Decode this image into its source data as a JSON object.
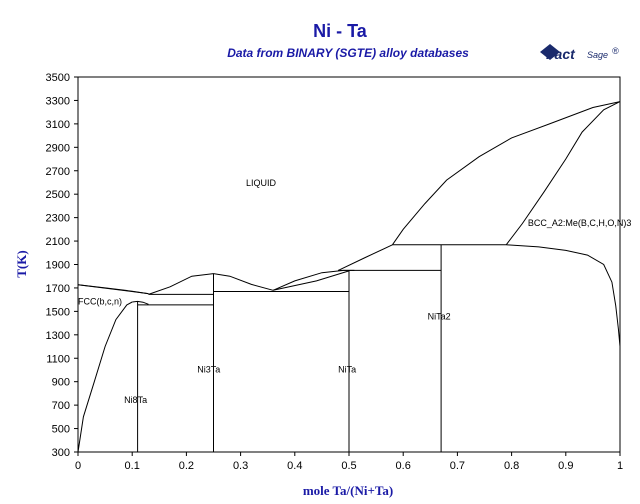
{
  "chart_data": {
    "type": "line",
    "title": "Ni - Ta",
    "subtitle": "Data from BINARY (SGTE) alloy databases",
    "xlabel": "mole Ta/(Ni+Ta)",
    "ylabel": "T(K)",
    "xlim": [
      0,
      1
    ],
    "ylim": [
      300,
      3500
    ],
    "x_ticks": [
      0,
      0.1,
      0.2,
      0.3,
      0.4,
      0.5,
      0.6,
      0.7,
      0.8,
      0.9,
      1
    ],
    "x_tick_labels": [
      "0",
      "0.1",
      "0.2",
      "0.3",
      "0.4",
      "0.5",
      "0.6",
      "0.7",
      "0.8",
      "0.9",
      "1"
    ],
    "y_ticks": [
      300,
      500,
      700,
      900,
      1100,
      1300,
      1500,
      1700,
      1900,
      2100,
      2300,
      2500,
      2700,
      2900,
      3100,
      3300,
      3500
    ],
    "y_tick_labels": [
      "300",
      "500",
      "700",
      "900",
      "1100",
      "1300",
      "1500",
      "1700",
      "1900",
      "2100",
      "2300",
      "2500",
      "2700",
      "2900",
      "3100",
      "3300",
      "3500"
    ],
    "grid": false,
    "legend": "none",
    "region_labels": [
      {
        "text": "LIQUID",
        "x": 0.31,
        "y": 2570
      },
      {
        "text": "FCC(b,c,n)",
        "x": 0.0,
        "y": 1560
      },
      {
        "text": "BCC_A2:Me(B,C,H,O,N)3",
        "x": 0.83,
        "y": 2230
      },
      {
        "text": "Ni3Ta",
        "x": 0.22,
        "y": 980
      },
      {
        "text": "NiTa",
        "x": 0.48,
        "y": 980
      },
      {
        "text": "NiTa2",
        "x": 0.645,
        "y": 1430
      },
      {
        "text": "Ni8Ta",
        "x": 0.085,
        "y": 720
      }
    ],
    "series": [
      {
        "points": [
          [
            0,
            1728
          ],
          [
            0.05,
            1700
          ],
          [
            0.1,
            1672
          ],
          [
            0.13,
            1650
          ]
        ]
      },
      {
        "points": [
          [
            0,
            1728
          ],
          [
            0.13,
            1652
          ]
        ]
      },
      {
        "points": [
          [
            0.13,
            1645
          ],
          [
            0.25,
            1645
          ]
        ]
      },
      {
        "points": [
          [
            0.13,
            1645
          ],
          [
            0.17,
            1710
          ],
          [
            0.21,
            1800
          ],
          [
            0.25,
            1822
          ],
          [
            0.28,
            1800
          ],
          [
            0.32,
            1730
          ],
          [
            0.36,
            1680
          ]
        ]
      },
      {
        "points": [
          [
            0.36,
            1680
          ],
          [
            0.4,
            1760
          ],
          [
            0.45,
            1830
          ],
          [
            0.49,
            1850
          ],
          [
            0.51,
            1850
          ]
        ]
      },
      {
        "points": [
          [
            0.36,
            1680
          ],
          [
            0.44,
            1760
          ],
          [
            0.5,
            1845
          ]
        ]
      },
      {
        "points": [
          [
            0.48,
            1850
          ],
          [
            0.67,
            1850
          ]
        ]
      },
      {
        "points": [
          [
            0.48,
            1850
          ],
          [
            0.53,
            1960
          ],
          [
            0.58,
            2068
          ]
        ]
      },
      {
        "points": [
          [
            0.58,
            2068
          ],
          [
            0.6,
            2200
          ],
          [
            0.64,
            2420
          ],
          [
            0.68,
            2620
          ],
          [
            0.74,
            2820
          ],
          [
            0.8,
            2980
          ],
          [
            0.87,
            3100
          ],
          [
            0.95,
            3240
          ],
          [
            1,
            3290
          ]
        ]
      },
      {
        "points": [
          [
            0.58,
            2068
          ],
          [
            0.79,
            2068
          ]
        ]
      },
      {
        "points": [
          [
            0.79,
            2068
          ],
          [
            0.82,
            2250
          ],
          [
            0.86,
            2520
          ],
          [
            0.9,
            2800
          ],
          [
            0.93,
            3030
          ],
          [
            0.97,
            3220
          ],
          [
            1,
            3290
          ]
        ]
      },
      {
        "points": [
          [
            0.79,
            2068
          ],
          [
            0.85,
            2050
          ],
          [
            0.9,
            2020
          ],
          [
            0.94,
            1980
          ],
          [
            0.97,
            1900
          ],
          [
            0.985,
            1750
          ],
          [
            0.992,
            1550
          ],
          [
            0.997,
            1350
          ],
          [
            1,
            1200
          ]
        ]
      },
      {
        "points": [
          [
            0.1,
            1580
          ],
          [
            0.11,
            1585
          ],
          [
            0.12,
            1578
          ],
          [
            0.13,
            1560
          ]
        ]
      },
      {
        "points": [
          [
            0,
            300
          ],
          [
            0.01,
            600
          ],
          [
            0.03,
            900
          ],
          [
            0.05,
            1200
          ],
          [
            0.07,
            1430
          ],
          [
            0.09,
            1555
          ],
          [
            0.1,
            1580
          ]
        ]
      },
      {
        "points": [
          [
            0.11,
            1555
          ],
          [
            0.25,
            1555
          ]
        ]
      },
      {
        "points": [
          [
            0.25,
            1670
          ],
          [
            0.5,
            1670
          ]
        ]
      },
      {
        "points": [
          [
            0.11,
            300
          ],
          [
            0.11,
            1585
          ]
        ]
      },
      {
        "points": [
          [
            0.25,
            300
          ],
          [
            0.25,
            1822
          ]
        ]
      },
      {
        "points": [
          [
            0.5,
            300
          ],
          [
            0.5,
            1850
          ]
        ]
      },
      {
        "points": [
          [
            0.67,
            300
          ],
          [
            0.67,
            2068
          ]
        ]
      }
    ]
  },
  "logo": {
    "main": "Fact",
    "sup": "Sage",
    "reg": "®"
  }
}
